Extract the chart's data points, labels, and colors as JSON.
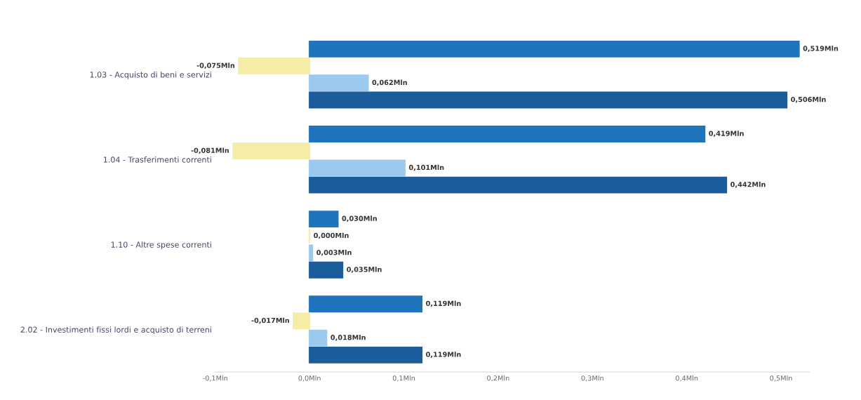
{
  "chart_data": {
    "type": "bar",
    "orientation": "horizontal",
    "categories": [
      "1.03 - Acquisto di beni e servizi",
      "1.04 - Trasferimenti correnti",
      "1.10 - Altre spese correnti",
      "2.02 - Investimenti fissi lordi e acquisto di terreni"
    ],
    "series": [
      {
        "color": "#1f74bb",
        "values": [
          0.519,
          0.419,
          0.03,
          0.119
        ],
        "value_labels": [
          "0,519Mln",
          "0,419Mln",
          "0,030Mln",
          "0,119Mln"
        ]
      },
      {
        "color": "#f5eca6",
        "values": [
          -0.075,
          -0.081,
          0.0,
          -0.017
        ],
        "value_labels": [
          "-0,075Mln",
          "-0,081Mln",
          "0,000Mln",
          "-0,017Mln"
        ]
      },
      {
        "color": "#9cc9ee",
        "values": [
          0.062,
          0.101,
          0.003,
          0.018
        ],
        "value_labels": [
          "0,062Mln",
          "0,101Mln",
          "0,003Mln",
          "0,018Mln"
        ]
      },
      {
        "color": "#1b5d9b",
        "values": [
          0.506,
          0.442,
          0.035,
          0.119
        ],
        "value_labels": [
          "0,506Mln",
          "0,442Mln",
          "0,035Mln",
          "0,119Mln"
        ]
      }
    ],
    "xlim": [
      -0.1,
      0.53
    ],
    "xticks": [
      {
        "value": -0.1,
        "label": "-0,1Mln"
      },
      {
        "value": 0,
        "label": "0,0Mln"
      },
      {
        "value": 0.1,
        "label": "0,1Mln"
      },
      {
        "value": 0.2,
        "label": "0,2Mln"
      },
      {
        "value": 0.3,
        "label": "0,3Mln"
      },
      {
        "value": 0.4,
        "label": "0,4Mln"
      },
      {
        "value": 0.5,
        "label": "0,5Mln"
      }
    ],
    "grid": false
  }
}
